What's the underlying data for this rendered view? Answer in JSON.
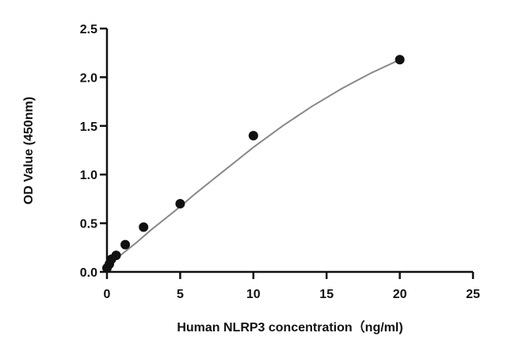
{
  "chart_data": {
    "type": "scatter",
    "title": "",
    "xlabel": "Human NLRP3 concentration（ng/ml)",
    "ylabel": "OD Value (450nm)",
    "xlim": [
      0,
      25
    ],
    "ylim": [
      0,
      2.5
    ],
    "x_ticks": [
      0,
      5,
      10,
      15,
      20,
      25
    ],
    "y_ticks": [
      0.0,
      0.5,
      1.0,
      1.5,
      2.0,
      2.5
    ],
    "x_tick_labels": [
      "0",
      "5",
      "10",
      "15",
      "20",
      "25"
    ],
    "y_tick_labels": [
      "0.0",
      "0.5",
      "1.0",
      "1.5",
      "2.0",
      "2.5"
    ],
    "grid": false,
    "series": [
      {
        "x": [
          0,
          0.16,
          0.31,
          0.63,
          1.25,
          2.5,
          5,
          10,
          20
        ],
        "y": [
          0.04,
          0.08,
          0.13,
          0.17,
          0.28,
          0.46,
          0.7,
          1.4,
          2.18
        ]
      }
    ],
    "fit_curve": {
      "x": [
        0,
        1,
        2,
        3,
        4,
        5,
        6,
        7,
        8,
        9,
        10,
        11,
        12,
        13,
        14,
        15,
        16,
        17,
        18,
        19,
        20
      ],
      "y": [
        0.05,
        0.18,
        0.3,
        0.43,
        0.55,
        0.67,
        0.8,
        0.92,
        1.04,
        1.16,
        1.28,
        1.39,
        1.5,
        1.6,
        1.7,
        1.79,
        1.88,
        1.96,
        2.04,
        2.11,
        2.18
      ]
    },
    "colors": {
      "points": "#111111",
      "curve": "#888888",
      "axis": "#111111"
    }
  }
}
